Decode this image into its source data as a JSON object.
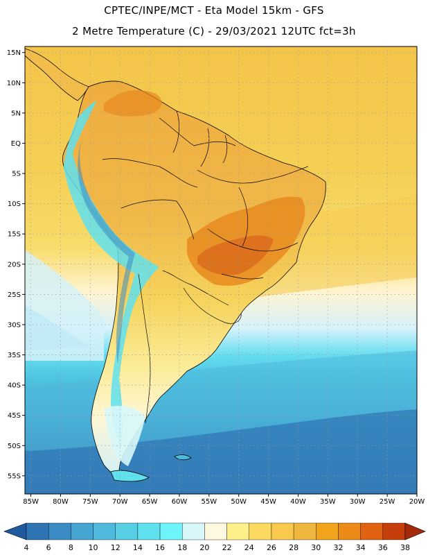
{
  "header": {
    "title_line1": "CPTEC/INPE/MCT -  Eta Model 15km - GFS",
    "title_line2": "2 Metre Temperature (C) - 29/03/2021 12UTC fct=3h"
  },
  "map": {
    "region": "South America",
    "lat_ticks": [
      "15N",
      "10N",
      "5N",
      "EQ",
      "5S",
      "10S",
      "15S",
      "20S",
      "25S",
      "30S",
      "35S",
      "40S",
      "45S",
      "50S",
      "55S"
    ],
    "lon_ticks": [
      "85W",
      "80W",
      "75W",
      "70W",
      "65W",
      "60W",
      "55W",
      "50W",
      "45W",
      "40W",
      "35W",
      "30W",
      "25W",
      "20W"
    ],
    "lat_range_deg": [
      -58,
      16
    ],
    "lon_range_deg": [
      -86,
      -20
    ]
  },
  "colorbar": {
    "labels": [
      "4",
      "6",
      "8",
      "10",
      "12",
      "14",
      "16",
      "18",
      "20",
      "22",
      "24",
      "26",
      "28",
      "30",
      "32",
      "34",
      "36",
      "38"
    ],
    "colors": [
      "#1f5a9e",
      "#2f74b3",
      "#3b8cc4",
      "#46a5d3",
      "#4fbadd",
      "#59cfe3",
      "#5fe1ee",
      "#6df5fb",
      "#d8f7f9",
      "#fff8e0",
      "#fff08a",
      "#fddb61",
      "#f8c94d",
      "#f0b73e",
      "#f2a51c",
      "#ec8a17",
      "#e06212",
      "#c63e0b",
      "#a52a08"
    ],
    "low_arrow_color": "#1f5a9e",
    "high_arrow_color": "#a52a08"
  }
}
